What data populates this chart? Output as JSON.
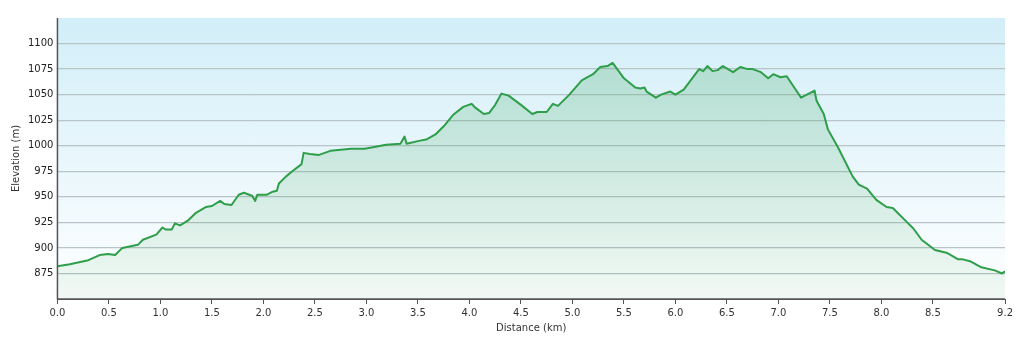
{
  "chart_data": {
    "type": "area",
    "xlabel": "Distance (km)",
    "ylabel": "Elevation (m)",
    "grid": "y",
    "legend": false,
    "marker": "none",
    "xlim": [
      0,
      9.2
    ],
    "ylim": [
      850,
      1125
    ],
    "xticks": [
      {
        "value": 0,
        "label": "0.0"
      },
      {
        "value": 0.5,
        "label": "0.5"
      },
      {
        "value": 1,
        "label": "1.0"
      },
      {
        "value": 1.5,
        "label": "1.5"
      },
      {
        "value": 2,
        "label": "2.0"
      },
      {
        "value": 2.5,
        "label": "2.5"
      },
      {
        "value": 3,
        "label": "3.0"
      },
      {
        "value": 3.5,
        "label": "3.5"
      },
      {
        "value": 4,
        "label": "4.0"
      },
      {
        "value": 4.5,
        "label": "4.5"
      },
      {
        "value": 5,
        "label": "5.0"
      },
      {
        "value": 5.5,
        "label": "5.5"
      },
      {
        "value": 6,
        "label": "6.0"
      },
      {
        "value": 6.5,
        "label": "6.5"
      },
      {
        "value": 7,
        "label": "7.0"
      },
      {
        "value": 7.5,
        "label": "7.5"
      },
      {
        "value": 8,
        "label": "8.0"
      },
      {
        "value": 8.5,
        "label": "8.5"
      },
      {
        "value": 9.2,
        "label": "9.2"
      }
    ],
    "yticks": [
      875,
      900,
      925,
      950,
      975,
      1000,
      1025,
      1050,
      1075,
      1100
    ],
    "series": [
      {
        "color": "#2e9e4a",
        "x": [
          0,
          0.12,
          0.3,
          0.41,
          0.49,
          0.56,
          0.63,
          0.78,
          0.83,
          0.96,
          1.02,
          1.05,
          1.11,
          1.14,
          1.19,
          1.27,
          1.34,
          1.44,
          1.5,
          1.58,
          1.62,
          1.69,
          1.76,
          1.81,
          1.89,
          1.92,
          1.94,
          2.03,
          2.09,
          2.13,
          2.15,
          2.22,
          2.28,
          2.37,
          2.39,
          2.45,
          2.54,
          2.65,
          2.85,
          2.98,
          3.09,
          3.19,
          3.33,
          3.37,
          3.39,
          3.52,
          3.58,
          3.67,
          3.75,
          3.84,
          3.94,
          4.02,
          4.06,
          4.14,
          4.19,
          4.25,
          4.31,
          4.38,
          4.5,
          4.61,
          4.66,
          4.75,
          4.81,
          4.86,
          4.97,
          5.09,
          5.2,
          5.27,
          5.34,
          5.39,
          5.5,
          5.61,
          5.66,
          5.7,
          5.72,
          5.81,
          5.86,
          5.95,
          6,
          6.08,
          6.23,
          6.27,
          6.31,
          6.36,
          6.41,
          6.46,
          6.56,
          6.63,
          6.7,
          6.75,
          6.83,
          6.9,
          6.95,
          7.02,
          7.08,
          7.22,
          7.35,
          7.37,
          7.44,
          7.48,
          7.58,
          7.72,
          7.78,
          7.86,
          7.95,
          8.05,
          8.11,
          8.25,
          8.31,
          8.39,
          8.52,
          8.64,
          8.74,
          8.78,
          8.86,
          8.97,
          9.1,
          9.17,
          9.2
        ],
        "values": [
          882,
          884,
          888,
          893,
          894,
          893,
          900,
          903,
          908,
          913,
          920,
          918,
          918,
          924,
          922,
          927,
          934,
          940,
          941,
          946,
          943,
          942,
          952,
          954,
          951,
          946,
          952,
          952,
          955,
          956,
          963,
          970,
          975,
          982,
          993,
          992,
          991,
          995,
          997,
          997,
          999,
          1001,
          1002,
          1009,
          1002,
          1005,
          1006,
          1011,
          1019,
          1030,
          1038,
          1041,
          1037,
          1031,
          1032,
          1040,
          1051,
          1049,
          1040,
          1031,
          1033,
          1033,
          1041,
          1039,
          1050,
          1064,
          1070,
          1077,
          1078,
          1081,
          1066,
          1057,
          1056,
          1057,
          1053,
          1047,
          1050,
          1053,
          1050,
          1055,
          1075,
          1073,
          1078,
          1073,
          1074,
          1078,
          1072,
          1077,
          1075,
          1075,
          1072,
          1066,
          1070,
          1067,
          1068,
          1047,
          1054,
          1044,
          1031,
          1016,
          998,
          970,
          962,
          958,
          947,
          940,
          939,
          925,
          919,
          908,
          898,
          895,
          889,
          889,
          887,
          881,
          878,
          875,
          877
        ]
      }
    ]
  }
}
